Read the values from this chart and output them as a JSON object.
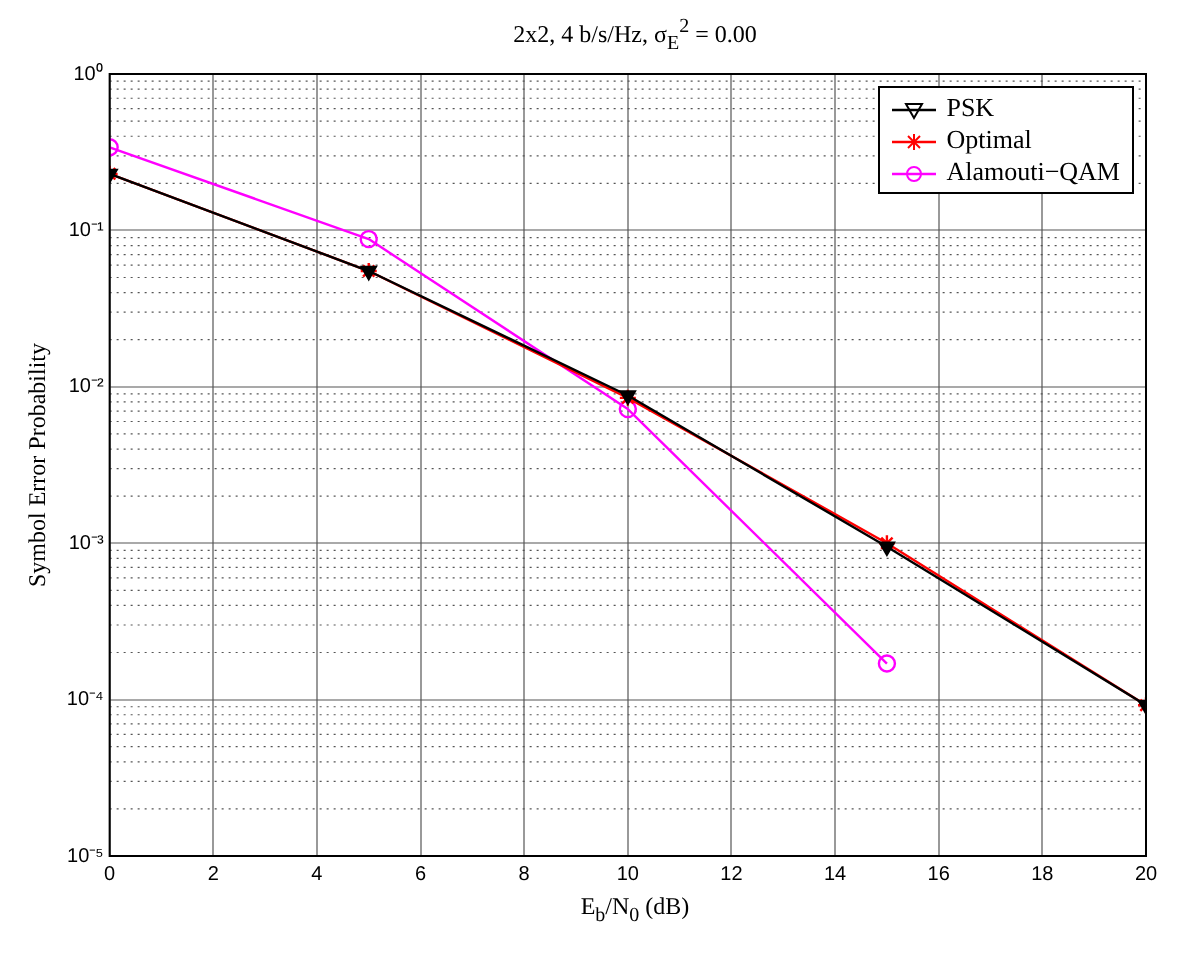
{
  "chart_data": {
    "type": "line",
    "title": "2x2, 4 b/s/Hz, σ$_{E}$$^{2}$ = 0.00",
    "xlabel": "E$_{b}$/N$_{0}$ (dB)",
    "ylabel": "Symbol Error Probability",
    "x": [
      0,
      5,
      10,
      15,
      20
    ],
    "series": [
      {
        "name": "PSK",
        "color": "#000000",
        "marker": "triangle",
        "values": [
          0.23,
          0.055,
          0.0088,
          0.00095,
          9.2e-05
        ]
      },
      {
        "name": "Optimal",
        "color": "#ff0000",
        "marker": "cross",
        "values": [
          0.23,
          0.055,
          0.0085,
          0.001,
          9.2e-05
        ]
      },
      {
        "name": "Alamouti−QAM",
        "color": "#ff00ff",
        "marker": "circle",
        "values": [
          0.34,
          0.088,
          0.0072,
          0.00017,
          null
        ]
      }
    ],
    "log": "y",
    "xlim": [
      0,
      20
    ],
    "xticks": [
      0,
      2,
      4,
      6,
      8,
      10,
      12,
      14,
      16,
      18,
      20
    ],
    "ylim": [
      1e-05,
      1
    ],
    "yticks": [
      {
        "value": 1e-05,
        "label": "10⁻⁵"
      },
      {
        "value": 0.0001,
        "label": "10⁻⁴"
      },
      {
        "value": 0.001,
        "label": "10⁻³"
      },
      {
        "value": 0.01,
        "label": "10⁻²"
      },
      {
        "value": 0.1,
        "label": "10⁻¹"
      },
      {
        "value": 1,
        "label": "10⁰"
      }
    ],
    "grid": true,
    "legend": "top right",
    "line_style": "solid"
  }
}
